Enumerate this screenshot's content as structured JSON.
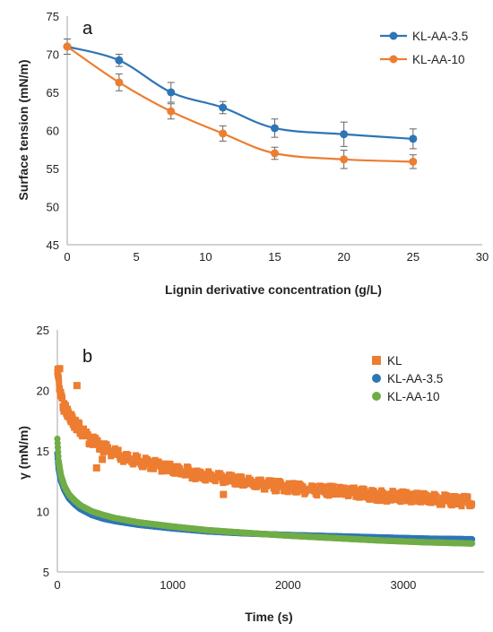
{
  "chart_data": [
    {
      "type": "line",
      "panel": "a",
      "xlabel": "Lignin derivative concentration (g/L)",
      "ylabel": "Surface tension (mN/m)",
      "xlim": [
        0,
        30
      ],
      "ylim": [
        45,
        75
      ],
      "xticks": [
        "0",
        "5",
        "10",
        "15",
        "20",
        "25",
        "30"
      ],
      "yticks": [
        "45",
        "50",
        "55",
        "60",
        "65",
        "70",
        "75"
      ],
      "grid": false,
      "legend_position": "top-right",
      "x": [
        0,
        3.75,
        7.5,
        11.25,
        15,
        20,
        25
      ],
      "series": [
        {
          "name": "KL-AA-3.5",
          "color": "#2e75b6",
          "values": [
            71.0,
            69.2,
            65.0,
            63.0,
            60.3,
            59.5,
            58.9
          ],
          "errors": [
            1.0,
            0.8,
            1.3,
            0.8,
            1.2,
            1.6,
            1.3
          ]
        },
        {
          "name": "KL-AA-10",
          "color": "#ed7d31",
          "values": [
            71.0,
            66.3,
            62.5,
            59.6,
            57.0,
            56.2,
            55.9
          ],
          "errors": [
            1.0,
            1.1,
            1.0,
            1.0,
            0.8,
            1.2,
            0.9
          ]
        }
      ]
    },
    {
      "type": "scatter",
      "panel": "b",
      "xlabel": "Time (s)",
      "ylabel": "γ (mN/m)",
      "xlim": [
        0,
        3700
      ],
      "ylim": [
        5,
        25
      ],
      "xticks": [
        "0",
        "1000",
        "2000",
        "3000"
      ],
      "yticks": [
        "5",
        "10",
        "15",
        "20",
        "25"
      ],
      "grid": false,
      "legend_position": "top-right",
      "series": [
        {
          "name": "KL",
          "marker": "square",
          "color": "#ed7d31",
          "x": [
            0,
            30,
            60,
            100,
            150,
            200,
            250,
            300,
            400,
            500,
            600,
            800,
            1000,
            1200,
            1500,
            1800,
            2000,
            2200,
            2500,
            2800,
            3000,
            3300,
            3600
          ],
          "y": [
            21.5,
            19.5,
            18.5,
            18.0,
            17.3,
            16.8,
            16.2,
            15.8,
            15.3,
            14.8,
            14.4,
            13.9,
            13.5,
            13.1,
            12.6,
            12.2,
            12.0,
            11.8,
            11.6,
            11.3,
            11.2,
            11.0,
            10.8
          ],
          "outliers": [
            [
              20,
              21.8
            ],
            [
              170,
              20.4
            ],
            [
              340,
              13.6
            ],
            [
              390,
              14.3
            ],
            [
              1440,
              11.4
            ]
          ]
        },
        {
          "name": "KL-AA-3.5",
          "marker": "circle",
          "color": "#2e75b6",
          "x": [
            0,
            10,
            30,
            60,
            100,
            150,
            200,
            300,
            400,
            500,
            700,
            1000,
            1300,
            1600,
            2000,
            2400,
            2800,
            3200,
            3600
          ],
          "y": [
            14.8,
            13.6,
            12.6,
            11.8,
            11.1,
            10.6,
            10.2,
            9.7,
            9.4,
            9.2,
            8.9,
            8.6,
            8.35,
            8.2,
            8.05,
            7.95,
            7.85,
            7.75,
            7.7
          ]
        },
        {
          "name": "KL-AA-10",
          "marker": "circle",
          "color": "#70ad47",
          "x": [
            0,
            10,
            30,
            60,
            100,
            150,
            200,
            300,
            400,
            500,
            700,
            1000,
            1300,
            1600,
            2000,
            2400,
            2800,
            3200,
            3600
          ],
          "y": [
            16.0,
            14.2,
            13.0,
            12.1,
            11.4,
            10.9,
            10.5,
            10.0,
            9.7,
            9.45,
            9.1,
            8.75,
            8.45,
            8.25,
            8.0,
            7.8,
            7.6,
            7.45,
            7.35
          ]
        }
      ]
    }
  ]
}
